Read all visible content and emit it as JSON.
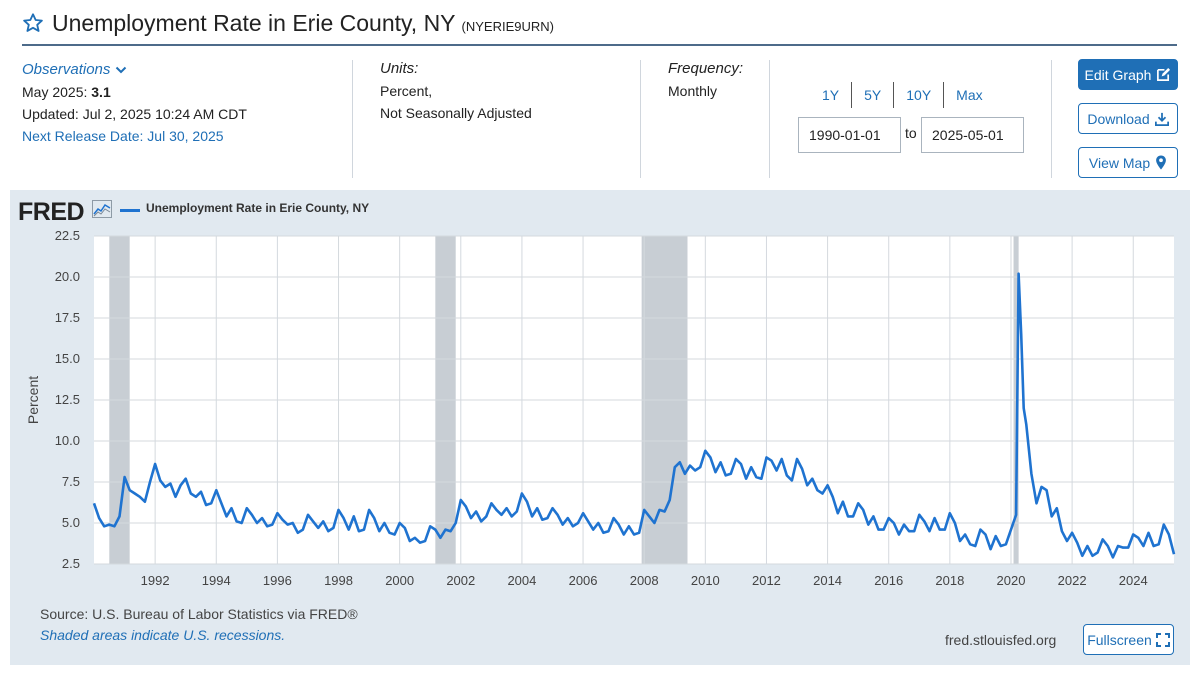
{
  "header": {
    "title": "Unemployment Rate in Erie County, NY",
    "series_id": "(NYERIE9URN)"
  },
  "observations": {
    "label": "Observations",
    "latest_label": "May 2025:",
    "latest_value": "3.1",
    "updated": "Updated: Jul 2, 2025 10:24 AM CDT",
    "next_release": "Next Release Date: Jul 30, 2025"
  },
  "units": {
    "label": "Units:",
    "line1": "Percent,",
    "line2": "Not Seasonally Adjusted"
  },
  "frequency": {
    "label": "Frequency:",
    "value": "Monthly"
  },
  "range": {
    "tabs": [
      "1Y",
      "5Y",
      "10Y",
      "Max"
    ],
    "start": "1990-01-01",
    "to_label": "to",
    "end": "2025-05-01"
  },
  "buttons": {
    "edit": "Edit Graph",
    "download": "Download",
    "map": "View Map",
    "fullscreen": "Fullscreen"
  },
  "footer": {
    "source": "Source: U.S. Bureau of Labor Statistics via FRED®",
    "shaded_note": "Shaded areas indicate U.S. recessions.",
    "site": "fred.stlouisfed.org"
  },
  "logo": {
    "text": "FRED"
  },
  "colors": {
    "accent": "#1f6fb6",
    "line": "#1f73d0",
    "recession": "#c8ced4",
    "panel": "#e1e9f0"
  },
  "chart_data": {
    "type": "line",
    "ylabel": "Percent",
    "ylim": [
      2.5,
      22.5
    ],
    "yticks": [
      "22.5",
      "20.0",
      "17.5",
      "15.0",
      "12.5",
      "10.0",
      "7.5",
      "5.0",
      "2.5"
    ],
    "xlim": [
      "1990-01",
      "2025-05"
    ],
    "xticks": [
      "1992",
      "1994",
      "1996",
      "1998",
      "2000",
      "2002",
      "2004",
      "2006",
      "2008",
      "2010",
      "2012",
      "2014",
      "2016",
      "2018",
      "2020",
      "2022",
      "2024"
    ],
    "grid": true,
    "legend_position": "top-left",
    "recessions": [
      [
        "1990-07",
        "1991-03"
      ],
      [
        "2001-03",
        "2001-11"
      ],
      [
        "2007-12",
        "2009-06"
      ],
      [
        "2020-02",
        "2020-04"
      ]
    ],
    "series": [
      {
        "name": "Unemployment Rate in Erie County, NY",
        "points": [
          [
            "1990-01",
            6.2
          ],
          [
            "1990-03",
            5.3
          ],
          [
            "1990-05",
            4.8
          ],
          [
            "1990-07",
            4.9
          ],
          [
            "1990-09",
            4.8
          ],
          [
            "1990-11",
            5.4
          ],
          [
            "1991-01",
            7.8
          ],
          [
            "1991-03",
            7.0
          ],
          [
            "1991-05",
            6.8
          ],
          [
            "1991-07",
            6.6
          ],
          [
            "1991-09",
            6.3
          ],
          [
            "1991-11",
            7.5
          ],
          [
            "1992-01",
            8.6
          ],
          [
            "1992-03",
            7.6
          ],
          [
            "1992-05",
            7.2
          ],
          [
            "1992-07",
            7.4
          ],
          [
            "1992-09",
            6.6
          ],
          [
            "1992-11",
            7.3
          ],
          [
            "1993-01",
            7.7
          ],
          [
            "1993-03",
            6.8
          ],
          [
            "1993-05",
            6.6
          ],
          [
            "1993-07",
            6.9
          ],
          [
            "1993-09",
            6.1
          ],
          [
            "1993-11",
            6.2
          ],
          [
            "1994-01",
            7.0
          ],
          [
            "1994-03",
            6.2
          ],
          [
            "1994-05",
            5.4
          ],
          [
            "1994-07",
            5.9
          ],
          [
            "1994-09",
            5.1
          ],
          [
            "1994-11",
            5.0
          ],
          [
            "1995-01",
            5.9
          ],
          [
            "1995-03",
            5.5
          ],
          [
            "1995-05",
            5.0
          ],
          [
            "1995-07",
            5.3
          ],
          [
            "1995-09",
            4.8
          ],
          [
            "1995-11",
            4.9
          ],
          [
            "1996-01",
            5.6
          ],
          [
            "1996-03",
            5.2
          ],
          [
            "1996-05",
            4.9
          ],
          [
            "1996-07",
            5.0
          ],
          [
            "1996-09",
            4.4
          ],
          [
            "1996-11",
            4.6
          ],
          [
            "1997-01",
            5.5
          ],
          [
            "1997-03",
            5.1
          ],
          [
            "1997-05",
            4.7
          ],
          [
            "1997-07",
            5.1
          ],
          [
            "1997-09",
            4.5
          ],
          [
            "1997-11",
            4.7
          ],
          [
            "1998-01",
            5.8
          ],
          [
            "1998-03",
            5.3
          ],
          [
            "1998-05",
            4.6
          ],
          [
            "1998-07",
            5.4
          ],
          [
            "1998-09",
            4.5
          ],
          [
            "1998-11",
            4.6
          ],
          [
            "1999-01",
            5.8
          ],
          [
            "1999-03",
            5.3
          ],
          [
            "1999-05",
            4.5
          ],
          [
            "1999-07",
            5.0
          ],
          [
            "1999-09",
            4.4
          ],
          [
            "1999-11",
            4.3
          ],
          [
            "2000-01",
            5.0
          ],
          [
            "2000-03",
            4.7
          ],
          [
            "2000-05",
            3.9
          ],
          [
            "2000-07",
            4.1
          ],
          [
            "2000-09",
            3.8
          ],
          [
            "2000-11",
            3.9
          ],
          [
            "2001-01",
            4.8
          ],
          [
            "2001-03",
            4.6
          ],
          [
            "2001-05",
            4.1
          ],
          [
            "2001-07",
            4.6
          ],
          [
            "2001-09",
            4.5
          ],
          [
            "2001-11",
            5.0
          ],
          [
            "2002-01",
            6.4
          ],
          [
            "2002-03",
            6.0
          ],
          [
            "2002-05",
            5.3
          ],
          [
            "2002-07",
            5.7
          ],
          [
            "2002-09",
            5.1
          ],
          [
            "2002-11",
            5.4
          ],
          [
            "2003-01",
            6.2
          ],
          [
            "2003-03",
            5.8
          ],
          [
            "2003-05",
            5.5
          ],
          [
            "2003-07",
            5.9
          ],
          [
            "2003-09",
            5.4
          ],
          [
            "2003-11",
            5.7
          ],
          [
            "2004-01",
            6.8
          ],
          [
            "2004-03",
            6.3
          ],
          [
            "2004-05",
            5.4
          ],
          [
            "2004-07",
            5.9
          ],
          [
            "2004-09",
            5.2
          ],
          [
            "2004-11",
            5.3
          ],
          [
            "2005-01",
            5.9
          ],
          [
            "2005-03",
            5.5
          ],
          [
            "2005-05",
            4.9
          ],
          [
            "2005-07",
            5.3
          ],
          [
            "2005-09",
            4.8
          ],
          [
            "2005-11",
            5.0
          ],
          [
            "2006-01",
            5.6
          ],
          [
            "2006-03",
            5.1
          ],
          [
            "2006-05",
            4.6
          ],
          [
            "2006-07",
            5.0
          ],
          [
            "2006-09",
            4.4
          ],
          [
            "2006-11",
            4.5
          ],
          [
            "2007-01",
            5.3
          ],
          [
            "2007-03",
            4.9
          ],
          [
            "2007-05",
            4.3
          ],
          [
            "2007-07",
            4.8
          ],
          [
            "2007-09",
            4.3
          ],
          [
            "2007-11",
            4.4
          ],
          [
            "2008-01",
            5.8
          ],
          [
            "2008-03",
            5.4
          ],
          [
            "2008-05",
            5.0
          ],
          [
            "2008-07",
            5.8
          ],
          [
            "2008-09",
            5.7
          ],
          [
            "2008-11",
            6.4
          ],
          [
            "2009-01",
            8.4
          ],
          [
            "2009-03",
            8.7
          ],
          [
            "2009-05",
            8.0
          ],
          [
            "2009-07",
            8.5
          ],
          [
            "2009-09",
            8.2
          ],
          [
            "2009-11",
            8.4
          ],
          [
            "2010-01",
            9.4
          ],
          [
            "2010-03",
            9.0
          ],
          [
            "2010-05",
            8.1
          ],
          [
            "2010-07",
            8.7
          ],
          [
            "2010-09",
            7.9
          ],
          [
            "2010-11",
            8.0
          ],
          [
            "2011-01",
            8.9
          ],
          [
            "2011-03",
            8.6
          ],
          [
            "2011-05",
            7.7
          ],
          [
            "2011-07",
            8.4
          ],
          [
            "2011-09",
            7.8
          ],
          [
            "2011-11",
            7.7
          ],
          [
            "2012-01",
            9.0
          ],
          [
            "2012-03",
            8.8
          ],
          [
            "2012-05",
            8.2
          ],
          [
            "2012-07",
            8.9
          ],
          [
            "2012-09",
            7.9
          ],
          [
            "2012-11",
            7.6
          ],
          [
            "2013-01",
            8.9
          ],
          [
            "2013-03",
            8.3
          ],
          [
            "2013-05",
            7.3
          ],
          [
            "2013-07",
            7.7
          ],
          [
            "2013-09",
            7.0
          ],
          [
            "2013-11",
            6.8
          ],
          [
            "2014-01",
            7.3
          ],
          [
            "2014-03",
            6.6
          ],
          [
            "2014-05",
            5.6
          ],
          [
            "2014-07",
            6.3
          ],
          [
            "2014-09",
            5.4
          ],
          [
            "2014-11",
            5.4
          ],
          [
            "2015-01",
            6.2
          ],
          [
            "2015-03",
            5.8
          ],
          [
            "2015-05",
            4.9
          ],
          [
            "2015-07",
            5.4
          ],
          [
            "2015-09",
            4.6
          ],
          [
            "2015-11",
            4.6
          ],
          [
            "2016-01",
            5.3
          ],
          [
            "2016-03",
            5.0
          ],
          [
            "2016-05",
            4.3
          ],
          [
            "2016-07",
            4.9
          ],
          [
            "2016-09",
            4.5
          ],
          [
            "2016-11",
            4.5
          ],
          [
            "2017-01",
            5.5
          ],
          [
            "2017-03",
            5.1
          ],
          [
            "2017-05",
            4.5
          ],
          [
            "2017-07",
            5.3
          ],
          [
            "2017-09",
            4.6
          ],
          [
            "2017-11",
            4.6
          ],
          [
            "2018-01",
            5.6
          ],
          [
            "2018-03",
            5.0
          ],
          [
            "2018-05",
            3.9
          ],
          [
            "2018-07",
            4.3
          ],
          [
            "2018-09",
            3.7
          ],
          [
            "2018-11",
            3.6
          ],
          [
            "2019-01",
            4.6
          ],
          [
            "2019-03",
            4.3
          ],
          [
            "2019-05",
            3.4
          ],
          [
            "2019-07",
            4.2
          ],
          [
            "2019-09",
            3.6
          ],
          [
            "2019-11",
            3.7
          ],
          [
            "2020-01",
            4.6
          ],
          [
            "2020-03",
            5.5
          ],
          [
            "2020-04",
            20.2
          ],
          [
            "2020-05",
            16.5
          ],
          [
            "2020-06",
            12.0
          ],
          [
            "2020-07",
            11.0
          ],
          [
            "2020-09",
            8.0
          ],
          [
            "2020-11",
            6.2
          ],
          [
            "2021-01",
            7.2
          ],
          [
            "2021-03",
            7.0
          ],
          [
            "2021-05",
            5.4
          ],
          [
            "2021-07",
            5.9
          ],
          [
            "2021-09",
            4.5
          ],
          [
            "2021-11",
            3.9
          ],
          [
            "2022-01",
            4.4
          ],
          [
            "2022-03",
            3.8
          ],
          [
            "2022-05",
            3.0
          ],
          [
            "2022-07",
            3.6
          ],
          [
            "2022-09",
            3.0
          ],
          [
            "2022-11",
            3.2
          ],
          [
            "2023-01",
            4.0
          ],
          [
            "2023-03",
            3.6
          ],
          [
            "2023-05",
            2.9
          ],
          [
            "2023-07",
            3.6
          ],
          [
            "2023-09",
            3.5
          ],
          [
            "2023-11",
            3.5
          ],
          [
            "2024-01",
            4.3
          ],
          [
            "2024-03",
            4.1
          ],
          [
            "2024-05",
            3.6
          ],
          [
            "2024-07",
            4.4
          ],
          [
            "2024-09",
            3.6
          ],
          [
            "2024-11",
            3.7
          ],
          [
            "2025-01",
            4.9
          ],
          [
            "2025-03",
            4.3
          ],
          [
            "2025-05",
            3.1
          ]
        ]
      }
    ]
  }
}
